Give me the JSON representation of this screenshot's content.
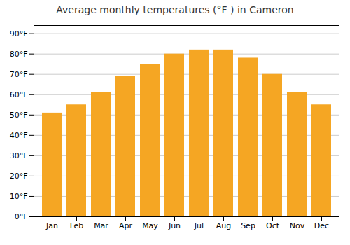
{
  "chart_data": {
    "type": "bar",
    "title": "Average monthly temperatures (°F ) in Cameron",
    "categories": [
      "Jan",
      "Feb",
      "Mar",
      "Apr",
      "May",
      "Jun",
      "Jul",
      "Aug",
      "Sep",
      "Oct",
      "Nov",
      "Dec"
    ],
    "values": [
      51,
      55,
      61,
      69,
      75,
      80,
      82,
      82,
      78,
      70,
      61,
      55
    ],
    "color": "#F5A623",
    "ylim": [
      0,
      94
    ],
    "yticks": [
      {
        "value": 0,
        "label": "0°F"
      },
      {
        "value": 10,
        "label": "10°F"
      },
      {
        "value": 20,
        "label": "20°F"
      },
      {
        "value": 30,
        "label": "30°F"
      },
      {
        "value": 40,
        "label": "40°F"
      },
      {
        "value": 50,
        "label": "50°F"
      },
      {
        "value": 60,
        "label": "60°F"
      },
      {
        "value": 70,
        "label": "70°F"
      },
      {
        "value": 80,
        "label": "80°F"
      },
      {
        "value": 90,
        "label": "90°F"
      }
    ],
    "grid": true
  }
}
